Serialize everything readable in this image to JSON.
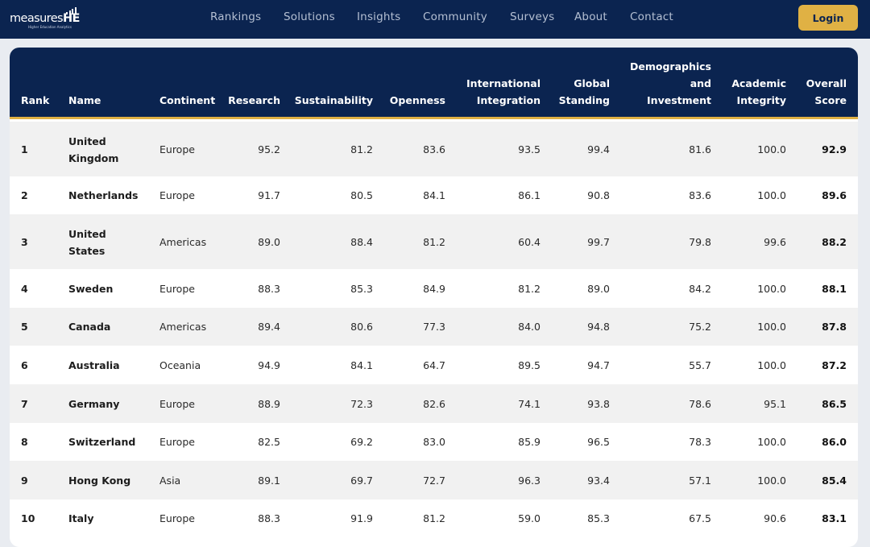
{
  "brand": {
    "name_light": "measures",
    "name_bold": "HE",
    "tagline": "Higher Education Analytics"
  },
  "nav": {
    "items": [
      "Rankings",
      "Solutions",
      "Insights",
      "Community",
      "Surveys",
      "About",
      "Contact"
    ],
    "login_label": "Login"
  },
  "colors": {
    "navy": "#0b2450",
    "gold": "#e0b144",
    "row_alt": "#f1f1f1"
  },
  "table": {
    "headers": {
      "rank": "Rank",
      "name": "Name",
      "continent": "Continent",
      "research": "Research",
      "sustainability": "Sustainability",
      "openness": "Openness",
      "international_1": "International",
      "international_2": "Integration",
      "global_1": "Global",
      "global_2": "Standing",
      "demo_1": "Demographics",
      "demo_2": "and",
      "demo_3": "Investment",
      "academic_1": "Academic",
      "academic_2": "Integrity",
      "overall_1": "Overall",
      "overall_2": "Score"
    },
    "rows": [
      {
        "rank": "1",
        "name_1": "United",
        "name_2": "Kingdom",
        "continent": "Europe",
        "research": "95.2",
        "sustainability": "81.2",
        "openness": "83.6",
        "international": "93.5",
        "global": "99.4",
        "demographics": "81.6",
        "academic": "100.0",
        "overall": "92.9"
      },
      {
        "rank": "2",
        "name_1": "Netherlands",
        "name_2": "",
        "continent": "Europe",
        "research": "91.7",
        "sustainability": "80.5",
        "openness": "84.1",
        "international": "86.1",
        "global": "90.8",
        "demographics": "83.6",
        "academic": "100.0",
        "overall": "89.6"
      },
      {
        "rank": "3",
        "name_1": "United",
        "name_2": "States",
        "continent": "Americas",
        "research": "89.0",
        "sustainability": "88.4",
        "openness": "81.2",
        "international": "60.4",
        "global": "99.7",
        "demographics": "79.8",
        "academic": "99.6",
        "overall": "88.2"
      },
      {
        "rank": "4",
        "name_1": "Sweden",
        "name_2": "",
        "continent": "Europe",
        "research": "88.3",
        "sustainability": "85.3",
        "openness": "84.9",
        "international": "81.2",
        "global": "89.0",
        "demographics": "84.2",
        "academic": "100.0",
        "overall": "88.1"
      },
      {
        "rank": "5",
        "name_1": "Canada",
        "name_2": "",
        "continent": "Americas",
        "research": "89.4",
        "sustainability": "80.6",
        "openness": "77.3",
        "international": "84.0",
        "global": "94.8",
        "demographics": "75.2",
        "academic": "100.0",
        "overall": "87.8"
      },
      {
        "rank": "6",
        "name_1": "Australia",
        "name_2": "",
        "continent": "Oceania",
        "research": "94.9",
        "sustainability": "84.1",
        "openness": "64.7",
        "international": "89.5",
        "global": "94.7",
        "demographics": "55.7",
        "academic": "100.0",
        "overall": "87.2"
      },
      {
        "rank": "7",
        "name_1": "Germany",
        "name_2": "",
        "continent": "Europe",
        "research": "88.9",
        "sustainability": "72.3",
        "openness": "82.6",
        "international": "74.1",
        "global": "93.8",
        "demographics": "78.6",
        "academic": "95.1",
        "overall": "86.5"
      },
      {
        "rank": "8",
        "name_1": "Switzerland",
        "name_2": "",
        "continent": "Europe",
        "research": "82.5",
        "sustainability": "69.2",
        "openness": "83.0",
        "international": "85.9",
        "global": "96.5",
        "demographics": "78.3",
        "academic": "100.0",
        "overall": "86.0"
      },
      {
        "rank": "9",
        "name_1": "Hong Kong",
        "name_2": "",
        "continent": "Asia",
        "research": "89.1",
        "sustainability": "69.7",
        "openness": "72.7",
        "international": "96.3",
        "global": "93.4",
        "demographics": "57.1",
        "academic": "100.0",
        "overall": "85.4"
      },
      {
        "rank": "10",
        "name_1": "Italy",
        "name_2": "",
        "continent": "Europe",
        "research": "88.3",
        "sustainability": "91.9",
        "openness": "81.2",
        "international": "59.0",
        "global": "85.3",
        "demographics": "67.5",
        "academic": "90.6",
        "overall": "83.1"
      }
    ]
  }
}
